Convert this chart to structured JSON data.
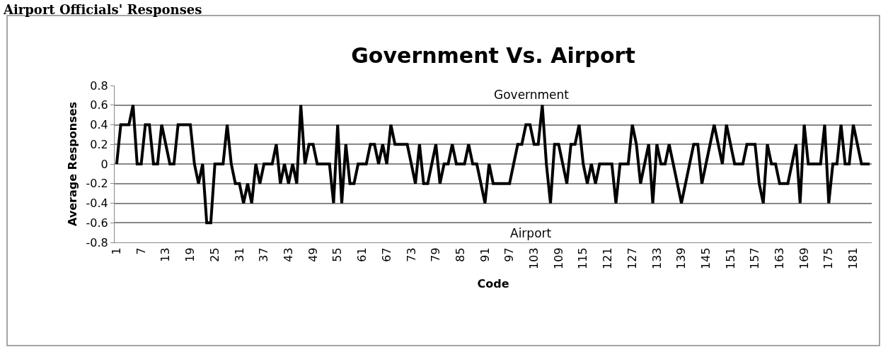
{
  "chart_data": {
    "type": "line",
    "title": "Government Vs. Airport",
    "xlabel": "Code",
    "ylabel": "Average Responses",
    "annotations": [
      "Airport Officials' Responses",
      "Government",
      "Airport"
    ],
    "categories": [
      "1",
      null,
      null,
      null,
      null,
      null,
      "7",
      null,
      null,
      null,
      null,
      null,
      "13",
      null,
      null,
      null,
      null,
      null,
      "19",
      null,
      null,
      null,
      null,
      null,
      "25",
      null,
      null,
      null,
      null,
      null,
      "31",
      null,
      null,
      null,
      null,
      null,
      "37",
      null,
      null,
      null,
      null,
      null,
      "43",
      null,
      null,
      null,
      null,
      null,
      "49",
      null,
      null,
      null,
      null,
      null,
      "55",
      null,
      null,
      null,
      null,
      null,
      "61",
      null,
      null,
      null,
      null,
      null,
      "67",
      null,
      null,
      null,
      null,
      null,
      "73",
      null,
      null,
      null,
      null,
      null,
      "79",
      null,
      null,
      null,
      null,
      null,
      "85",
      null,
      null,
      null,
      null,
      null,
      "91",
      null,
      null,
      null,
      null,
      null,
      "97",
      null,
      null,
      null,
      null,
      null,
      "103",
      null,
      null,
      null,
      null,
      null,
      "109",
      null,
      null,
      null,
      null,
      null,
      "115",
      null,
      null,
      null,
      null,
      null,
      "121",
      null,
      null,
      null,
      null,
      null,
      "127",
      null,
      null,
      null,
      null,
      null,
      "133",
      null,
      null,
      null,
      null,
      null,
      "139",
      null,
      null,
      null,
      null,
      null,
      "145",
      null,
      null,
      null,
      null,
      null,
      "151",
      null,
      null,
      null,
      null,
      null,
      "157",
      null,
      null,
      null,
      null,
      null,
      "163",
      null,
      null,
      null,
      null,
      null,
      "169",
      null,
      null,
      null,
      null,
      null,
      "175",
      null,
      null,
      null,
      null,
      null,
      "181",
      null,
      null,
      null,
      null
    ],
    "series": [
      {
        "color": "#000000",
        "values": [
          0,
          0.4,
          0.4,
          0.4,
          0.6,
          0,
          0,
          0.4,
          0.4,
          0,
          0,
          0.4,
          0.2,
          0,
          0,
          0.4,
          0.4,
          0.4,
          0.4,
          0,
          -0.2,
          0,
          -0.6,
          -0.6,
          0,
          0,
          0,
          0.4,
          0,
          -0.2,
          -0.2,
          -0.4,
          -0.2,
          -0.4,
          0,
          -0.2,
          0,
          0,
          0,
          0.2,
          -0.2,
          0,
          -0.2,
          0,
          -0.2,
          0.6,
          0,
          0.2,
          0.2,
          0,
          0,
          0,
          0,
          -0.4,
          0.4,
          -0.4,
          0.2,
          -0.2,
          -0.2,
          0,
          0,
          0,
          0.2,
          0.2,
          0,
          0.2,
          0,
          0.4,
          0.2,
          0.2,
          0.2,
          0.2,
          0,
          -0.2,
          0.2,
          -0.2,
          -0.2,
          0,
          0.2,
          -0.2,
          0,
          0,
          0.2,
          0,
          0,
          0,
          0.2,
          0,
          0,
          -0.2,
          -0.4,
          0,
          -0.2,
          -0.2,
          -0.2,
          -0.2,
          -0.2,
          0,
          0.2,
          0.2,
          0.4,
          0.4,
          0.2,
          0.2,
          0.6,
          0,
          -0.4,
          0.2,
          0.2,
          0,
          -0.2,
          0.2,
          0.2,
          0.4,
          0,
          -0.2,
          0,
          -0.2,
          0,
          0,
          0,
          0,
          -0.4,
          0,
          0,
          0,
          0.4,
          0.2,
          -0.2,
          0,
          0.2,
          -0.4,
          0.2,
          0,
          0,
          0.2,
          0,
          -0.2,
          -0.4,
          -0.2,
          0,
          0.2,
          0.2,
          -0.2,
          0,
          0.2,
          0.4,
          0.2,
          0,
          0.4,
          0.2,
          0,
          0,
          0,
          0.2,
          0.2,
          0.2,
          -0.2,
          -0.4,
          0.2,
          0,
          0,
          -0.2,
          -0.2,
          -0.2,
          0,
          0.2,
          -0.4,
          0.4,
          0,
          0,
          0,
          0,
          0.4,
          -0.4,
          0,
          0,
          0.4,
          0,
          0,
          0.4,
          0.2,
          0,
          0,
          0
        ]
      }
    ],
    "ylim": [
      -0.8,
      0.8
    ],
    "yticks": [
      -0.8,
      -0.6,
      -0.4,
      -0.2,
      0,
      0.2,
      0.4,
      0.6,
      0.8
    ],
    "grid": "y",
    "marker": "none",
    "line_style": "solid"
  }
}
